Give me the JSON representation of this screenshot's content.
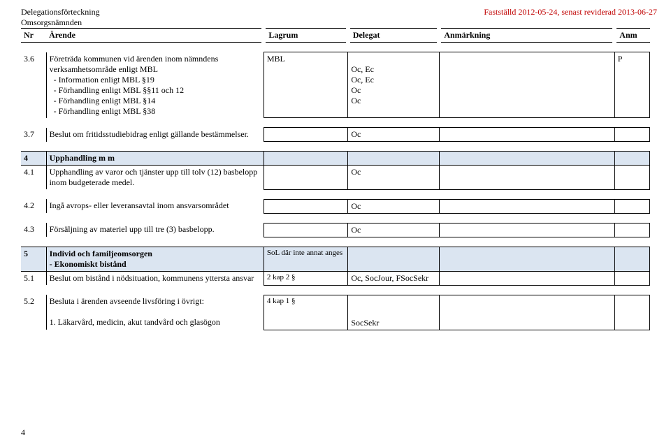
{
  "header": {
    "title_line1": "Delegationsförteckning",
    "title_line2": "Omsorgsnämnden",
    "date": "Fastställd 2012-05-24, senast reviderad 2013-06-27"
  },
  "columns": {
    "nr": "Nr",
    "arende": "Ärende",
    "lagrum": "Lagrum",
    "delegat": "Delegat",
    "anmarkning": "Anmärkning",
    "anm": "Anm"
  },
  "rows": {
    "r36": {
      "nr": "3.6",
      "arende_l1": "Företräda kommunen vid ärenden inom nämndens verksamhetsområde enligt MBL",
      "arende_l2": "- Information enligt MBL §19",
      "arende_l3": "- Förhandling enligt MBL §§11 och 12",
      "arende_l4": "- Förhandling enligt MBL §14",
      "arende_l5": "- Förhandling enligt MBL §38",
      "lagrum": "MBL",
      "delegat_l1": "",
      "delegat_l2": "Oc, Ec",
      "delegat_l3": "Oc, Ec",
      "delegat_l4": "Oc",
      "delegat_l5": "Oc",
      "anm": "P"
    },
    "r37": {
      "nr": "3.7",
      "arende": "Beslut om fritidsstudiebidrag enligt gällande bestämmelser.",
      "delegat": "Oc"
    },
    "s4": {
      "nr": "4",
      "title": "Upphandling m m"
    },
    "r41": {
      "nr": "4.1",
      "arende": "Upphandling av varor och tjänster upp till tolv (12) basbelopp inom budgeterade medel.",
      "delegat": "Oc"
    },
    "r42": {
      "nr": "4.2",
      "arende": "Ingå avrops- eller leveransavtal inom ansvarsområdet",
      "delegat": "Oc"
    },
    "r43": {
      "nr": "4.3",
      "arende": "Försäljning av materiel upp till tre (3) basbelopp.",
      "delegat": "Oc"
    },
    "s5": {
      "nr": "5",
      "title_l1": "Individ och familjeomsorgen",
      "title_l2": "- Ekonomiskt bistånd",
      "lagrum": "SoL där inte annat anges"
    },
    "r51": {
      "nr": "5.1",
      "arende": "Beslut om bistånd i nödsituation, kommunens yttersta ansvar",
      "lagrum": "2 kap 2 §",
      "delegat": "Oc, SocJour, FSocSekr"
    },
    "r52": {
      "nr": "5.2",
      "arende": "Besluta i ärenden avseende livsföring i övrigt:",
      "lagrum": "4 kap 1 §",
      "sub1": "1. Läkarvård, medicin, akut tandvård och glasögon",
      "sub1_delegat": "SocSekr"
    }
  },
  "page_number": "4"
}
